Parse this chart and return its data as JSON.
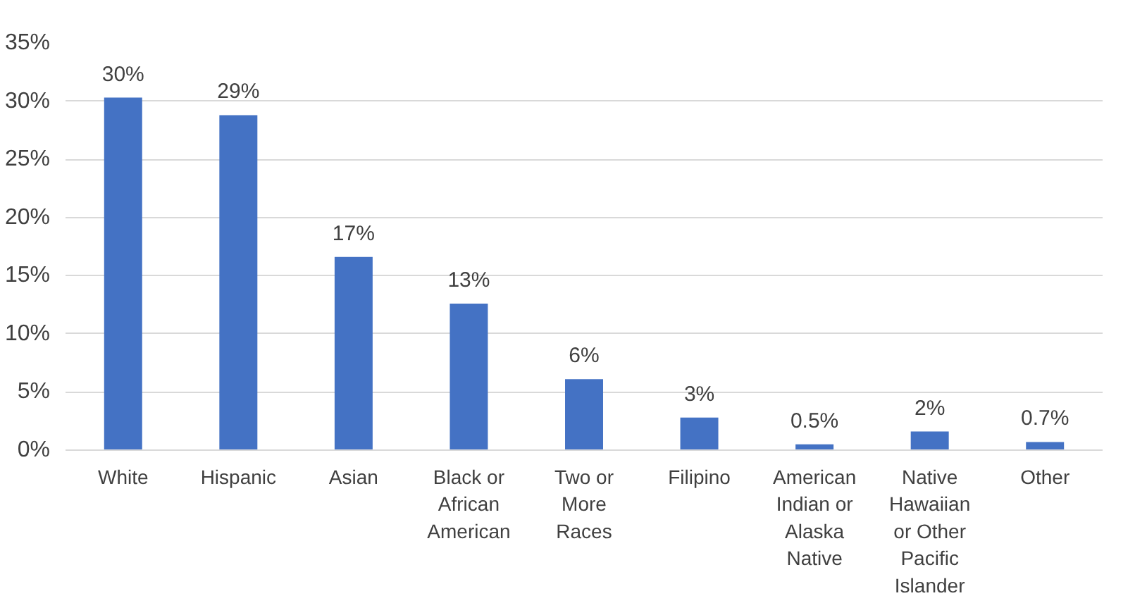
{
  "chart_data": {
    "type": "bar",
    "categories": [
      "White",
      "Hispanic",
      "Asian",
      "Black or African American",
      "Two or More Races",
      "Filipino",
      "American Indian or Alaska Native",
      "Native Hawaiian or Other Pacific Islander",
      "Other"
    ],
    "values": [
      30.3,
      28.8,
      16.6,
      12.6,
      6.1,
      2.8,
      0.5,
      1.6,
      0.7
    ],
    "value_labels": [
      "30%",
      "29%",
      "17%",
      "13%",
      "6%",
      "3%",
      "0.5%",
      "2%",
      "0.7%"
    ],
    "color": "#4472c4",
    "ylim": [
      0,
      35
    ],
    "yticks": [
      {
        "value": 0,
        "label": "0%"
      },
      {
        "value": 5,
        "label": "5%"
      },
      {
        "value": 10,
        "label": "10%"
      },
      {
        "value": 15,
        "label": "15%"
      },
      {
        "value": 20,
        "label": "20%"
      },
      {
        "value": 25,
        "label": "25%"
      },
      {
        "value": 30,
        "label": "30%"
      },
      {
        "value": 35,
        "label": "35%"
      }
    ],
    "grid": "y"
  }
}
